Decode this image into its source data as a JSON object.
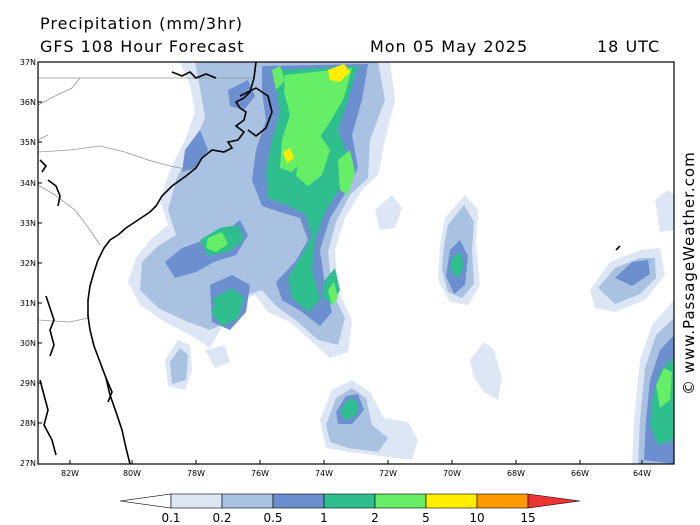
{
  "header": {
    "title": "Precipitation (mm/3hr)",
    "subtitle": "GFS 108 Hour Forecast",
    "date": "Mon 05 May 2025",
    "time": "18 UTC"
  },
  "credit": "© www.PassageWeather.com",
  "map": {
    "lat_labels": [
      "37N",
      "36N",
      "35N",
      "34N",
      "33N",
      "32N",
      "31N",
      "30N",
      "29N",
      "28N",
      "27N"
    ],
    "lon_labels": [
      "82W",
      "80W",
      "78W",
      "76W",
      "74W",
      "72W",
      "70W",
      "68W",
      "66W",
      "64W"
    ],
    "colors": {
      "c1": "#dde6f4",
      "c2": "#a9c2e2",
      "c3": "#6b8fcf",
      "c4": "#2fbf8f",
      "c5": "#66ee66",
      "c6": "#ffee00",
      "c7": "#ff9900",
      "c8": "#ee3333"
    }
  },
  "legend": {
    "labels": [
      "0.1",
      "0.2",
      "0.5",
      "1",
      "2",
      "5",
      "10",
      "15"
    ],
    "colors": [
      "#ffffff",
      "#dde6f4",
      "#a9c2e2",
      "#6b8fcf",
      "#2fbf8f",
      "#66ee66",
      "#ffee00",
      "#ff9900",
      "#ee3333"
    ]
  }
}
